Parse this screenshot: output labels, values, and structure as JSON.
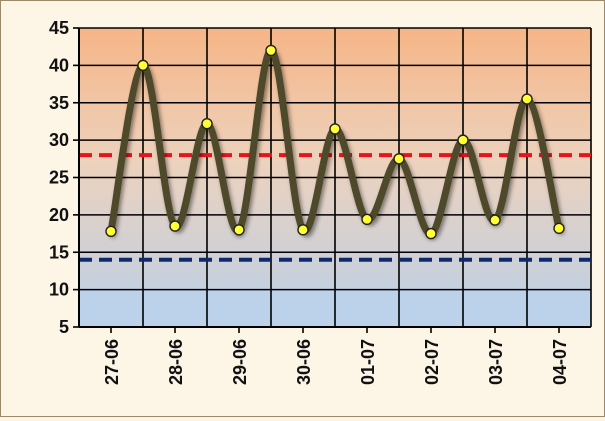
{
  "chart_data": {
    "type": "line",
    "title": "",
    "xlabel": "",
    "ylabel": "",
    "categories": [
      "27-06",
      "28-06",
      "29-06",
      "30-06",
      "01-07",
      "02-07",
      "03-07",
      "04-07"
    ],
    "ylim": [
      5,
      45
    ],
    "yticks": [
      5,
      10,
      15,
      20,
      25,
      30,
      35,
      40,
      45
    ],
    "grid": true,
    "legend": "none",
    "series": [
      {
        "x": [
          0,
          0.5,
          1,
          1.5,
          2,
          2.5,
          3,
          3.5,
          4,
          4.5,
          5,
          5.5,
          6,
          6.5,
          7
        ],
        "values": [
          17.8,
          40.0,
          18.5,
          32.2,
          18.0,
          42.0,
          18.0,
          31.5,
          19.4,
          27.5,
          17.5,
          30.0,
          19.3,
          35.5,
          18.2
        ]
      }
    ],
    "reference_lines": [
      {
        "value": 28,
        "color": "#e8141b",
        "style": "dashed"
      },
      {
        "value": 14,
        "color": "#0f2a6b",
        "style": "dashed"
      }
    ],
    "colors": {
      "line": "#4d4a2c",
      "marker_fill": "#ffff33",
      "background_top": "#f6b587",
      "background_bottom": "#b9cfe9",
      "background_band": "#bcd1ea"
    }
  }
}
